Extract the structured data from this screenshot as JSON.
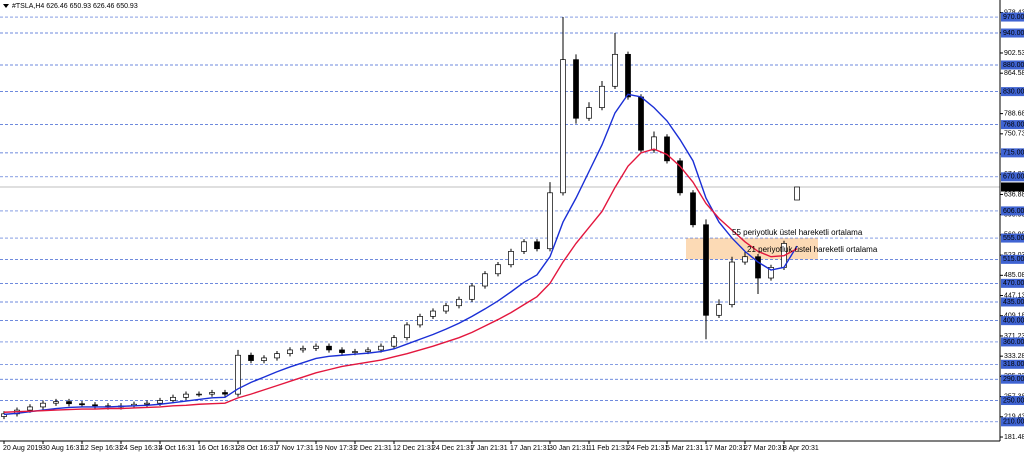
{
  "chart_data": {
    "type": "candlestick",
    "title": "#TSLA,H4  626.46 650.93 626.46 650.93",
    "categories": [
      "20 Aug 2019",
      null,
      null,
      "30 Aug 16:31",
      null,
      null,
      "12 Sep 16:31",
      null,
      null,
      "24 Sep 16:31",
      null,
      null,
      "4 Oct 16:31",
      null,
      null,
      "16 Oct 16:31",
      null,
      null,
      "28 Oct 16:31",
      null,
      null,
      "7 Nov 17:31",
      null,
      null,
      "19 Nov 17:31",
      null,
      null,
      "2 Dec 21:31",
      null,
      null,
      "12 Dec 21:31",
      null,
      null,
      "24 Dec 21:31",
      null,
      null,
      "7 Jan 21:31",
      null,
      null,
      "17 Jan 21:31",
      null,
      null,
      "30 Jan 21:31",
      null,
      null,
      "11 Feb 21:31",
      null,
      null,
      "24 Feb 21:31",
      null,
      null,
      "5 Mar 21:31",
      null,
      null,
      "17 Mar 20:31",
      null,
      null,
      "27 Mar 20:31",
      null,
      null,
      "8 Apr 20:31",
      null
    ],
    "open": [
      220,
      225,
      232,
      238,
      245,
      248,
      244,
      242,
      240,
      238,
      240,
      243,
      245,
      250,
      256,
      262,
      262,
      265,
      262,
      335,
      325,
      330,
      338,
      345,
      348,
      352,
      345,
      340,
      342,
      345,
      352,
      368,
      392,
      408,
      418,
      428,
      440,
      465,
      488,
      505,
      530,
      548,
      535,
      640,
      890,
      780,
      800,
      840,
      900,
      820,
      720,
      745,
      700,
      640,
      580,
      410,
      430,
      510,
      520,
      480,
      500,
      626.46
    ],
    "high": [
      230,
      237,
      243,
      250,
      253,
      253,
      249,
      247,
      245,
      245,
      248,
      250,
      255,
      261,
      267,
      267,
      270,
      270,
      345,
      340,
      335,
      343,
      350,
      353,
      357,
      357,
      350,
      347,
      350,
      357,
      373,
      397,
      413,
      423,
      433,
      445,
      470,
      493,
      510,
      535,
      553,
      553,
      660,
      970,
      900,
      810,
      850,
      940,
      905,
      825,
      755,
      750,
      705,
      645,
      590,
      440,
      520,
      530,
      525,
      505,
      550,
      650.93
    ],
    "low": [
      215,
      220,
      227,
      233,
      240,
      239,
      237,
      235,
      233,
      233,
      235,
      238,
      240,
      245,
      251,
      257,
      257,
      257,
      257,
      320,
      320,
      325,
      333,
      340,
      343,
      340,
      335,
      335,
      337,
      340,
      347,
      363,
      387,
      403,
      413,
      423,
      435,
      460,
      483,
      500,
      525,
      530,
      530,
      635,
      770,
      775,
      795,
      835,
      815,
      715,
      715,
      695,
      635,
      575,
      365,
      405,
      425,
      505,
      450,
      475,
      495,
      626.46
    ],
    "close": [
      225,
      232,
      238,
      245,
      248,
      244,
      242,
      240,
      238,
      240,
      243,
      245,
      250,
      256,
      262,
      262,
      265,
      262,
      335,
      325,
      330,
      338,
      345,
      348,
      352,
      345,
      340,
      342,
      345,
      352,
      368,
      392,
      408,
      418,
      428,
      440,
      465,
      488,
      505,
      530,
      548,
      535,
      640,
      890,
      780,
      800,
      840,
      900,
      820,
      720,
      745,
      700,
      640,
      580,
      410,
      430,
      510,
      520,
      480,
      500,
      545,
      650.93
    ],
    "overlays": [
      {
        "color": "#1a2fd6",
        "values": [
          224,
          226,
          229,
          232,
          235,
          237,
          238,
          238,
          238,
          239,
          240,
          241,
          243,
          246,
          249,
          252,
          255,
          256,
          272,
          284,
          294,
          304,
          313,
          321,
          329,
          333,
          335,
          337,
          339,
          342,
          347,
          356,
          365,
          374,
          384,
          395,
          408,
          422,
          437,
          454,
          472,
          486,
          520,
          585,
          630,
          680,
          730,
          790,
          825,
          820,
          800,
          775,
          740,
          700,
          630,
          585,
          555,
          530,
          510,
          495,
          500,
          540
        ]
      },
      {
        "color": "#e3173e",
        "values": [
          228,
          229,
          230,
          231,
          232,
          233,
          234,
          234,
          235,
          235,
          236,
          237,
          238,
          240,
          241,
          243,
          244,
          245,
          255,
          262,
          270,
          278,
          286,
          294,
          302,
          308,
          314,
          318,
          322,
          326,
          332,
          338,
          345,
          352,
          360,
          368,
          378,
          390,
          402,
          415,
          430,
          445,
          470,
          510,
          545,
          575,
          605,
          650,
          690,
          715,
          722,
          712,
          690,
          660,
          620,
          592,
          570,
          548,
          530,
          520,
          522,
          535
        ]
      }
    ],
    "annotations": [
      {
        "text": "55 periyotluk üstel hareketli ortalama",
        "color": "#e3173e"
      },
      {
        "text": "21 periyotluk üstel hareketli ortalama",
        "color": "#1a2fd6"
      }
    ],
    "zone": [
      515,
      555
    ],
    "zone_color": "#fbd3a8",
    "current_price": 650.93,
    "ylim": [
      174,
      1002
    ],
    "yticks": [
      181.48,
      219.43,
      257.38,
      295.33,
      333.28,
      371.23,
      409.18,
      447.13,
      485.08,
      523.03,
      560.98,
      598.93,
      636.88,
      674.83,
      712.78,
      750.73,
      788.68,
      826.63,
      864.58,
      902.53,
      940.48,
      978.43
    ],
    "levels": [
      {
        "value": 970,
        "label": "970.00"
      },
      {
        "value": 940,
        "label": "940.00"
      },
      {
        "value": 880,
        "label": "880.00"
      },
      {
        "value": 830,
        "label": "830.00"
      },
      {
        "value": 768,
        "label": "768.00"
      },
      {
        "value": 715,
        "label": "715.00"
      },
      {
        "value": 670,
        "label": "670.00"
      },
      {
        "value": 606,
        "label": "606.00"
      },
      {
        "value": 555,
        "label": "555.00"
      },
      {
        "value": 515,
        "label": "515.00"
      },
      {
        "value": 470,
        "label": "470.00"
      },
      {
        "value": 435,
        "label": "435.00"
      },
      {
        "value": 400,
        "label": "400.00"
      },
      {
        "value": 360,
        "label": "360.00"
      },
      {
        "value": 318,
        "label": "318.00"
      },
      {
        "value": 290,
        "label": "290.00"
      },
      {
        "value": 250,
        "label": "250.00"
      },
      {
        "value": 210,
        "label": "210.00"
      }
    ],
    "level_color": "#3f63d2"
  }
}
